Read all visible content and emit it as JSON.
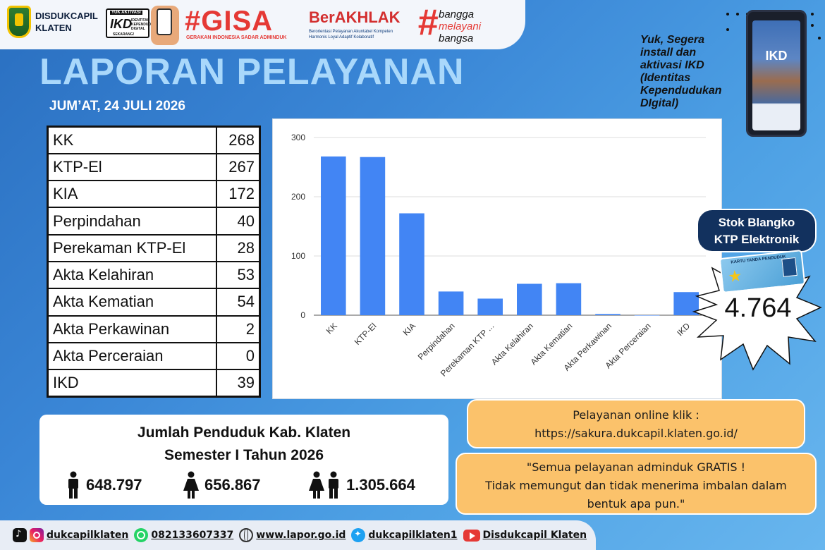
{
  "header": {
    "org_name_line1": "DISDUKCAPIL",
    "org_name_line2": "KLATEN",
    "ikd_badge_top": "YUK AKTIVASI",
    "ikd_badge_main": "IKD",
    "ikd_badge_desc": "IDENTITAS KEPENDUDUKAN DIGITAL",
    "ikd_badge_bottom": "SEKARANG!",
    "gisa_title": "#GISA",
    "gisa_subtitle": "GERAKAN INDONESIA SADAR ADMINDUK",
    "berakhlak_title": "BerAKHLAK",
    "berakhlak_subtitle": "Berorientasi Pelayanan Akuntabel Kompeten Harmonis Loyal Adaptif Kolaboratif",
    "bangga_hash": "#",
    "bangga_line1": "bangga",
    "bangga_line2": "melayani",
    "bangga_line3": "bangsa"
  },
  "title": "LAPORAN PELAYANAN",
  "date": "JUM’AT, 24 JULI 2026",
  "promo": {
    "text": "Yuk, Segera install dan aktivasi IKD (Identitas Kependudukan DIgital)",
    "phone_label": "IKD"
  },
  "services": [
    {
      "label": "KK",
      "value": "268"
    },
    {
      "label": "KTP-El",
      "value": "267"
    },
    {
      "label": "KIA",
      "value": "172"
    },
    {
      "label": "Perpindahan",
      "value": "40"
    },
    {
      "label": "Perekaman KTP-El",
      "value": "28"
    },
    {
      "label": "Akta Kelahiran",
      "value": "53"
    },
    {
      "label": "Akta Kematian",
      "value": "54"
    },
    {
      "label": "Akta Perkawinan",
      "value": "2"
    },
    {
      "label": "Akta Perceraian",
      "value": "0"
    },
    {
      "label": "IKD",
      "value": "39"
    }
  ],
  "chart_data": {
    "type": "bar",
    "categories": [
      "KK",
      "KTP-El",
      "KIA",
      "Perpindahan",
      "Perekaman KTP ...",
      "Akta Kelahiran",
      "Akta Kematian",
      "Akta Perkawinan",
      "Akta Perceraian",
      "IKD"
    ],
    "values": [
      268,
      267,
      172,
      40,
      28,
      53,
      54,
      2,
      0,
      39
    ],
    "yticks": [
      "0",
      "100",
      "200",
      "300"
    ],
    "ylim": [
      0,
      300
    ],
    "grid": true,
    "bar_color": "#4285f4"
  },
  "stok": {
    "label_line1": "Stok Blangko",
    "label_line2": "KTP Elektronik",
    "card_header": "KARTU TANDA PENDUDUK",
    "value": "4.764"
  },
  "population": {
    "title_line1": "Jumlah Penduduk Kab. Klaten",
    "title_line2": "Semester I Tahun 2026",
    "male": "648.797",
    "female": "656.867",
    "total": "1.305.664"
  },
  "online": {
    "line1": "Pelayanan online klik :",
    "line2": "https://sakura.dukcapil.klaten.go.id/"
  },
  "notice": {
    "line1": "\"Semua pelayanan adminduk GRATIS !",
    "line2": "Tidak memungut dan tidak menerima imbalan dalam",
    "line3": "bentuk apa pun.\""
  },
  "footer": {
    "social_handle": "dukcapilklaten",
    "whatsapp": "082133607337",
    "website": "www.lapor.go.id",
    "twitter": "dukcapilklaten1",
    "youtube": "Disdukcapil Klaten"
  }
}
